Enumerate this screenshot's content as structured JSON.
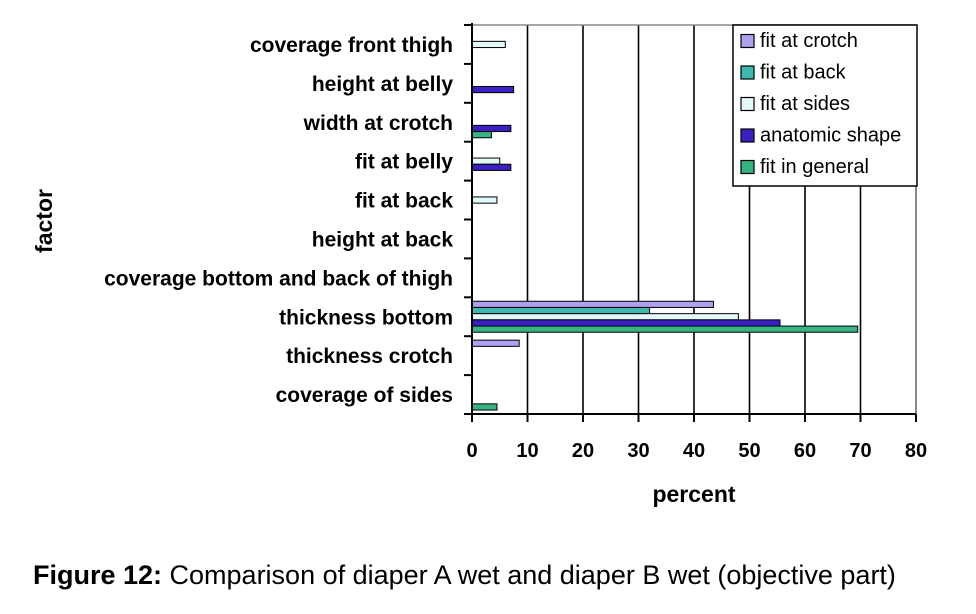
{
  "chart_data": {
    "type": "bar",
    "orientation": "horizontal",
    "categories": [
      "coverage front thigh",
      "height at belly",
      "width at crotch",
      "fit at belly",
      "fit at back",
      "height at back",
      "coverage bottom and back of thigh",
      "thickness bottom",
      "thickness crotch",
      "coverage of sides"
    ],
    "series": [
      {
        "name": "fit at crotch",
        "color": "#b19ff0",
        "values": [
          0,
          0,
          0,
          0,
          0,
          0,
          0,
          43.5,
          8.5,
          0
        ]
      },
      {
        "name": "fit at back",
        "color": "#3db9b0",
        "values": [
          0,
          0,
          0,
          0,
          0,
          0,
          0,
          32,
          0,
          0
        ]
      },
      {
        "name": "fit at sides",
        "color": "#e3f8f8",
        "values": [
          6,
          0,
          0,
          5,
          4.5,
          0,
          0,
          48,
          0,
          0
        ]
      },
      {
        "name": "anatomic shape",
        "color": "#3b1fc2",
        "values": [
          0,
          7.5,
          7,
          7,
          0,
          0,
          0,
          55.5,
          0,
          0
        ]
      },
      {
        "name": "fit in general",
        "color": "#35b380",
        "values": [
          0,
          0,
          3.5,
          0,
          0,
          0,
          0,
          69.5,
          0,
          4.5
        ]
      }
    ],
    "xlabel": "percent",
    "ylabel": "factor",
    "xlim": [
      0,
      80
    ],
    "xticks": [
      0,
      10,
      20,
      30,
      40,
      50,
      60,
      70,
      80
    ],
    "grid": "vertical lines",
    "legend_position": "top-right"
  },
  "caption": {
    "label": "Figure 12:",
    "text": " Comparison of diaper A wet and diaper B wet (objective part)"
  }
}
